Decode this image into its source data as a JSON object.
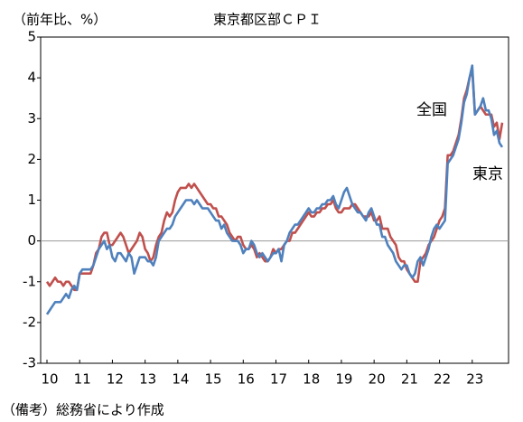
{
  "chart_data": {
    "type": "line",
    "title": "東京都区部ＣＰＩ",
    "y_label": "（前年比、%）",
    "note": "（備考）総務省により作成",
    "categories": [
      "10",
      null,
      null,
      null,
      null,
      null,
      null,
      null,
      null,
      null,
      null,
      null,
      "11",
      null,
      null,
      null,
      null,
      null,
      null,
      null,
      null,
      null,
      null,
      null,
      "12",
      null,
      null,
      null,
      null,
      null,
      null,
      null,
      null,
      null,
      null,
      null,
      "13",
      null,
      null,
      null,
      null,
      null,
      null,
      null,
      null,
      null,
      null,
      null,
      "14",
      null,
      null,
      null,
      null,
      null,
      null,
      null,
      null,
      null,
      null,
      null,
      "15",
      null,
      null,
      null,
      null,
      null,
      null,
      null,
      null,
      null,
      null,
      null,
      "16",
      null,
      null,
      null,
      null,
      null,
      null,
      null,
      null,
      null,
      null,
      null,
      "17",
      null,
      null,
      null,
      null,
      null,
      null,
      null,
      null,
      null,
      null,
      null,
      "18",
      null,
      null,
      null,
      null,
      null,
      null,
      null,
      null,
      null,
      null,
      null,
      "19",
      null,
      null,
      null,
      null,
      null,
      null,
      null,
      null,
      null,
      null,
      null,
      "20",
      null,
      null,
      null,
      null,
      null,
      null,
      null,
      null,
      null,
      null,
      null,
      "21",
      null,
      null,
      null,
      null,
      null,
      null,
      null,
      null,
      null,
      null,
      null,
      "22",
      null,
      null,
      null,
      null,
      null,
      null,
      null,
      null,
      null,
      null,
      null,
      "23",
      null,
      null,
      null,
      null,
      null,
      null,
      null,
      null,
      null,
      null,
      null
    ],
    "series": [
      {
        "name": "全国",
        "color": "#c0504d",
        "values": [
          -1.0,
          -1.1,
          -1.0,
          -0.9,
          -1.0,
          -1.0,
          -1.1,
          -1.0,
          -1.0,
          -1.1,
          -1.2,
          -1.2,
          -0.8,
          -0.8,
          -0.8,
          -0.8,
          -0.8,
          -0.6,
          -0.3,
          -0.2,
          0.1,
          0.2,
          0.2,
          -0.1,
          -0.1,
          0.0,
          0.1,
          0.2,
          0.1,
          -0.1,
          -0.3,
          -0.2,
          -0.1,
          0.0,
          0.2,
          0.1,
          -0.2,
          -0.3,
          -0.5,
          -0.4,
          -0.1,
          0.1,
          0.2,
          0.5,
          0.7,
          0.6,
          0.7,
          1.0,
          1.2,
          1.3,
          1.3,
          1.3,
          1.4,
          1.3,
          1.4,
          1.3,
          1.2,
          1.1,
          1.0,
          0.9,
          0.9,
          0.8,
          0.8,
          0.6,
          0.6,
          0.5,
          0.4,
          0.2,
          0.1,
          0.0,
          0.1,
          0.1,
          -0.1,
          -0.2,
          -0.2,
          -0.1,
          -0.2,
          -0.4,
          -0.3,
          -0.4,
          -0.5,
          -0.5,
          -0.4,
          -0.2,
          -0.3,
          -0.2,
          -0.2,
          -0.1,
          0.0,
          0.0,
          0.2,
          0.2,
          0.3,
          0.4,
          0.5,
          0.6,
          0.7,
          0.6,
          0.6,
          0.7,
          0.7,
          0.8,
          0.8,
          0.9,
          0.9,
          1.0,
          0.8,
          0.7,
          0.7,
          0.8,
          0.8,
          0.8,
          0.9,
          0.9,
          0.8,
          0.7,
          0.6,
          0.6,
          0.6,
          0.7,
          0.5,
          0.5,
          0.6,
          0.3,
          0.3,
          0.3,
          0.1,
          0.0,
          -0.1,
          -0.4,
          -0.5,
          -0.5,
          -0.7,
          -0.8,
          -0.9,
          -1.0,
          -1.0,
          -0.5,
          -0.4,
          -0.3,
          -0.1,
          0.0,
          0.1,
          0.3,
          0.5,
          0.6,
          0.8,
          2.1,
          2.1,
          2.2,
          2.4,
          2.6,
          3.0,
          3.5,
          3.7,
          4.0,
          4.2,
          3.1,
          3.2,
          3.3,
          3.2,
          3.1,
          3.1,
          3.1,
          2.8,
          2.9,
          2.5,
          2.9
        ]
      },
      {
        "name": "東京",
        "color": "#4f81bd",
        "values": [
          -1.8,
          -1.7,
          -1.6,
          -1.5,
          -1.5,
          -1.5,
          -1.4,
          -1.3,
          -1.4,
          -1.2,
          -1.1,
          -1.2,
          -0.8,
          -0.7,
          -0.7,
          -0.7,
          -0.7,
          -0.6,
          -0.4,
          -0.2,
          -0.1,
          0.0,
          -0.2,
          -0.1,
          -0.4,
          -0.5,
          -0.3,
          -0.3,
          -0.4,
          -0.5,
          -0.3,
          -0.4,
          -0.8,
          -0.6,
          -0.4,
          -0.4,
          -0.4,
          -0.5,
          -0.5,
          -0.6,
          -0.4,
          0.0,
          0.1,
          0.2,
          0.3,
          0.3,
          0.4,
          0.6,
          0.7,
          0.8,
          0.9,
          1.0,
          1.0,
          1.0,
          0.9,
          1.0,
          0.9,
          0.8,
          0.8,
          0.8,
          0.7,
          0.6,
          0.5,
          0.5,
          0.3,
          0.4,
          0.2,
          0.1,
          0.0,
          0.0,
          0.0,
          -0.1,
          -0.3,
          -0.2,
          -0.2,
          0.0,
          -0.1,
          -0.3,
          -0.4,
          -0.3,
          -0.4,
          -0.5,
          -0.4,
          -0.3,
          -0.3,
          -0.2,
          -0.5,
          -0.1,
          0.0,
          0.2,
          0.3,
          0.4,
          0.4,
          0.5,
          0.6,
          0.7,
          0.8,
          0.7,
          0.7,
          0.8,
          0.8,
          0.9,
          0.9,
          1.0,
          1.0,
          1.1,
          0.9,
          0.8,
          1.0,
          1.2,
          1.3,
          1.1,
          0.9,
          0.8,
          0.7,
          0.7,
          0.6,
          0.5,
          0.7,
          0.8,
          0.6,
          0.4,
          0.4,
          0.1,
          0.1,
          -0.1,
          -0.2,
          -0.3,
          -0.5,
          -0.6,
          -0.7,
          -0.6,
          -0.6,
          -0.8,
          -0.9,
          -0.8,
          -0.5,
          -0.4,
          -0.6,
          -0.4,
          -0.2,
          0.1,
          0.3,
          0.4,
          0.3,
          0.4,
          0.5,
          1.9,
          2.0,
          2.1,
          2.3,
          2.5,
          2.9,
          3.4,
          3.6,
          4.0,
          4.3,
          3.1,
          3.2,
          3.3,
          3.5,
          3.2,
          3.2,
          3.0,
          2.6,
          2.7,
          2.4,
          2.3
        ]
      }
    ],
    "ylim": [
      -3,
      5
    ],
    "yticks": [
      -3,
      -2,
      -1,
      0,
      1,
      2,
      3,
      4,
      5
    ],
    "zero_line": true
  }
}
